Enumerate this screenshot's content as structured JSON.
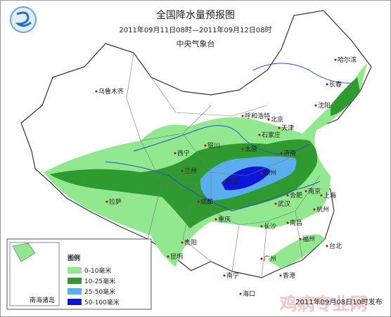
{
  "header": {
    "title": "全国降水量预报图",
    "subtitle": "2011年09月11日08时—2011年09月12日08时",
    "issuer": "中央气象台"
  },
  "cities": [
    {
      "name": "乌鲁木齐"
    },
    {
      "name": "拉萨"
    },
    {
      "name": "西宁"
    },
    {
      "name": "兰州"
    },
    {
      "name": "银川"
    },
    {
      "name": "呼和浩特"
    },
    {
      "name": "北京"
    },
    {
      "name": "天津"
    },
    {
      "name": "石家庄"
    },
    {
      "name": "太原"
    },
    {
      "name": "济南"
    },
    {
      "name": "郑州"
    },
    {
      "name": "西安"
    },
    {
      "name": "成都"
    },
    {
      "name": "重庆"
    },
    {
      "name": "贵阳"
    },
    {
      "name": "昆明"
    },
    {
      "name": "南宁"
    },
    {
      "name": "海口"
    },
    {
      "name": "广州"
    },
    {
      "name": "香港"
    },
    {
      "name": "台北"
    },
    {
      "name": "福州"
    },
    {
      "name": "南昌"
    },
    {
      "name": "长沙"
    },
    {
      "name": "武汉"
    },
    {
      "name": "合肥"
    },
    {
      "name": "南京"
    },
    {
      "name": "上海"
    },
    {
      "name": "杭州"
    },
    {
      "name": "沈阳"
    },
    {
      "name": "长春"
    },
    {
      "name": "哈尔滨"
    }
  ],
  "legend": {
    "title": "图例",
    "items": [
      {
        "label": "0-10毫米",
        "color": "#92e88e"
      },
      {
        "label": "10-25毫米",
        "color": "#2f9a2f"
      },
      {
        "label": "25-50毫米",
        "color": "#5aaef0"
      },
      {
        "label": "50-100毫米",
        "color": "#0b16d8"
      }
    ]
  },
  "inset_label": "南海诸岛",
  "footer": "2011年09月08日10时发布",
  "watermark": "鸡病专业网"
}
